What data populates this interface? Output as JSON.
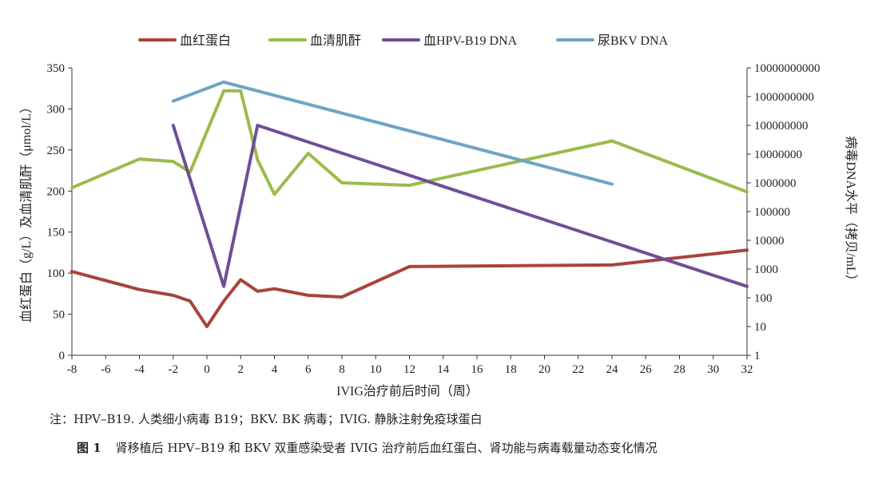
{
  "chart_data": {
    "type": "line",
    "legend_position": "top",
    "grid": false,
    "xlabel": "IVIG治疗前后时间（周）",
    "ylabel_left": "血红蛋白（g/L）及血清肌酐（μmol/L）",
    "ylabel_right": "病毒DNA水平（拷贝/mL）",
    "xlim": [
      -8,
      32
    ],
    "ylim_left": [
      0,
      350
    ],
    "ylim_right": [
      1,
      10000000000
    ],
    "right_scale": "log",
    "x_ticks": [
      -8,
      -6,
      -4,
      -2,
      0,
      2,
      4,
      6,
      8,
      10,
      12,
      14,
      16,
      18,
      20,
      22,
      24,
      26,
      28,
      30,
      32
    ],
    "left_ticks": [
      0,
      50,
      100,
      150,
      200,
      250,
      300,
      350
    ],
    "right_ticks": [
      "1",
      "10",
      "100",
      "1000",
      "10000",
      "100000",
      "1000000",
      "10000000",
      "100000000",
      "1000000000",
      "10000000000"
    ],
    "series": [
      {
        "name": "血红蛋白",
        "axis": "left",
        "color": "#a8433c",
        "points": [
          [
            -8,
            102
          ],
          [
            -4,
            80
          ],
          [
            -2,
            73
          ],
          [
            -1,
            66
          ],
          [
            0,
            35
          ],
          [
            1,
            66
          ],
          [
            2,
            92
          ],
          [
            3,
            78
          ],
          [
            4,
            81
          ],
          [
            6,
            73
          ],
          [
            8,
            71
          ],
          [
            12,
            108
          ],
          [
            24,
            110
          ],
          [
            32,
            128
          ]
        ]
      },
      {
        "name": "血清肌酐",
        "axis": "left",
        "color": "#9bbb4a",
        "points": [
          [
            -8,
            204
          ],
          [
            -4,
            239
          ],
          [
            -2,
            236
          ],
          [
            -1,
            223
          ],
          [
            1,
            322
          ],
          [
            2,
            322
          ],
          [
            3,
            238
          ],
          [
            4,
            196
          ],
          [
            6,
            246
          ],
          [
            8,
            210
          ],
          [
            12,
            207
          ],
          [
            24,
            261
          ],
          [
            32,
            199
          ]
        ]
      },
      {
        "name": "血HPV-B19 DNA",
        "axis": "right",
        "color": "#6e4f96",
        "points": [
          [
            -2,
            100000000
          ],
          [
            1,
            250
          ],
          [
            3,
            100000000
          ],
          [
            32,
            250
          ]
        ]
      },
      {
        "name": "尿BKV DNA",
        "axis": "right",
        "color": "#6ea4c4",
        "points": [
          [
            -2,
            700000000
          ],
          [
            1,
            3200000000
          ],
          [
            24,
            900000
          ]
        ]
      }
    ]
  },
  "footnote": "注：HPV–B19. 人类细小病毒 B19；BKV. BK 病毒；IVIG. 静脉注射免疫球蛋白",
  "caption": {
    "number": "图 1",
    "text": "肾移植后 HPV–B19 和 BKV 双重感染受者 IVIG 治疗前后血红蛋白、肾功能与病毒载量动态变化情况"
  }
}
